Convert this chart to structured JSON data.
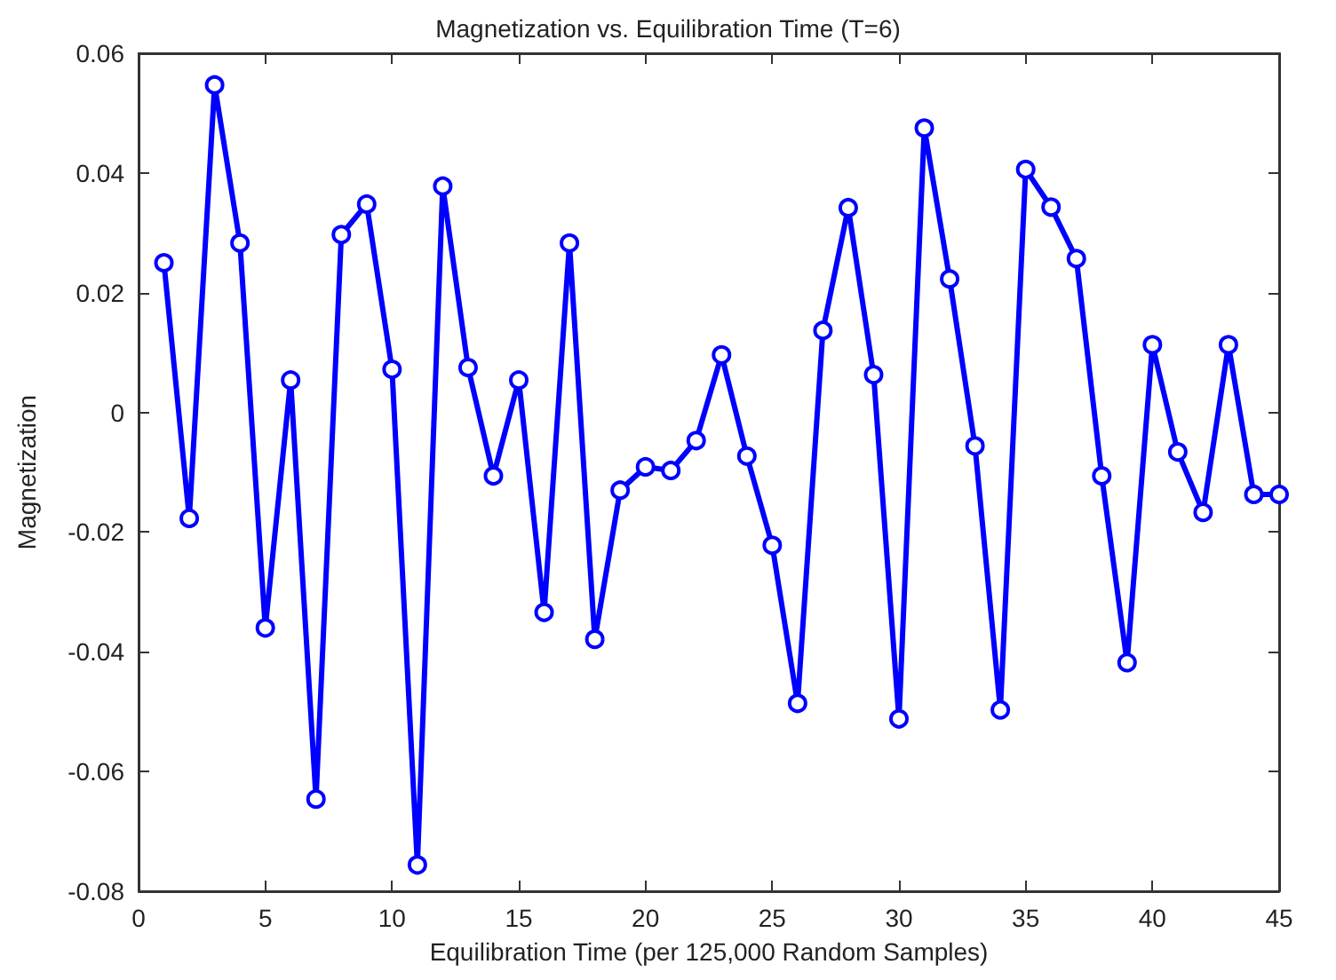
{
  "chart_data": {
    "type": "line",
    "title": "Magnetization vs. Equilibration Time (T=6)",
    "xlabel": "Equilibration Time (per 125,000 Random Samples)",
    "ylabel": "Magnetization",
    "x": [
      1,
      2,
      3,
      4,
      5,
      6,
      7,
      8,
      9,
      10,
      11,
      12,
      13,
      14,
      15,
      16,
      17,
      18,
      19,
      20,
      21,
      22,
      23,
      24,
      25,
      26,
      27,
      28,
      29,
      30,
      31,
      32,
      33,
      34,
      35,
      36,
      37,
      38,
      39,
      40,
      41,
      42,
      43,
      44,
      45
    ],
    "series": [
      {
        "color": "#0000ff",
        "values": [
          0.025,
          -0.0177,
          0.0547,
          0.0283,
          -0.036,
          0.0054,
          -0.0646,
          0.0297,
          0.0348,
          0.0072,
          -0.0756,
          0.0378,
          0.0075,
          -0.0106,
          0.0054,
          -0.0334,
          0.0283,
          -0.0379,
          -0.013,
          -0.0091,
          -0.0097,
          -0.0047,
          0.0096,
          -0.0073,
          -0.0222,
          -0.0486,
          0.0137,
          0.0342,
          0.0063,
          -0.0512,
          0.0475,
          0.0223,
          -0.0056,
          -0.0497,
          0.0406,
          0.0343,
          0.0257,
          -0.0106,
          -0.0418,
          0.0113,
          -0.0066,
          -0.0167,
          0.0113,
          -0.0137,
          -0.0137
        ]
      }
    ],
    "xlim": [
      0,
      45
    ],
    "xticks": [
      0,
      5,
      10,
      15,
      20,
      25,
      30,
      35,
      40,
      45
    ],
    "ylim": [
      -0.08,
      0.06
    ],
    "yticks": [
      -0.08,
      -0.06,
      -0.04,
      -0.02,
      0,
      0.02,
      0.04,
      0.06
    ],
    "grid": false,
    "marker": "circle",
    "line_style": "solid"
  }
}
